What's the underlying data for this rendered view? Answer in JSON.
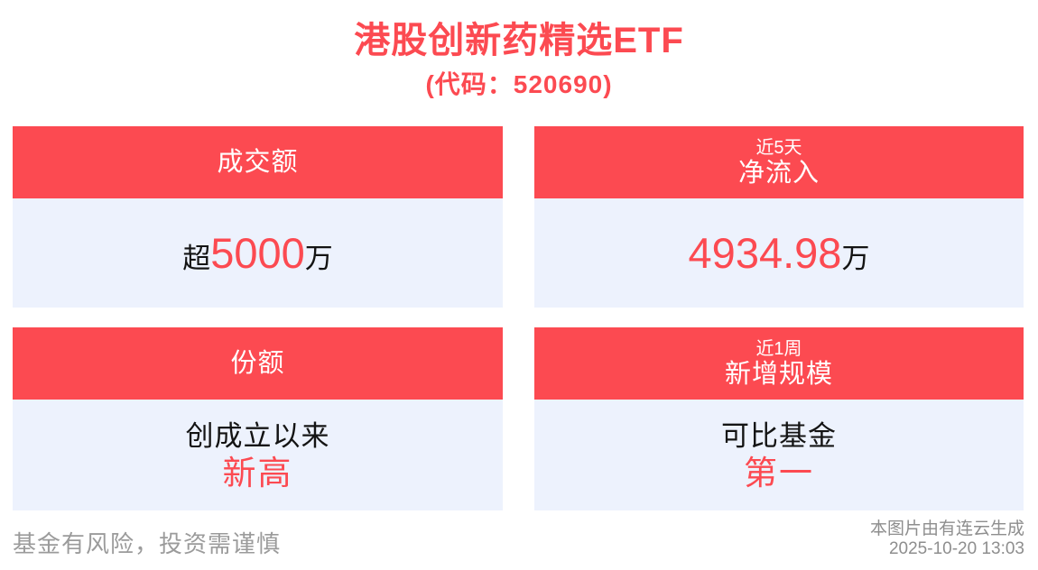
{
  "page": {
    "title": "港股创新药精选ETF",
    "subtitle": "(代码：520690)"
  },
  "colors": {
    "accent_red": "#FC4A51",
    "card_body_bg": "#EDF2FD",
    "text_dark": "#141414",
    "footer_gray": "#9B9B9B",
    "header_text": "#FFFFFF"
  },
  "cards": [
    {
      "name": "turnover",
      "header_small": "",
      "header_main": "成交额",
      "value_prefix": "超",
      "value_highlight": "5000",
      "value_suffix": "万"
    },
    {
      "name": "net-inflow-5d",
      "header_small": "近5天",
      "header_main": "净流入",
      "value_prefix": "",
      "value_highlight": "4934.98",
      "value_suffix": "万"
    },
    {
      "name": "fund-shares",
      "header_small": "",
      "header_main": "份额",
      "line1": "创成立以来",
      "line2": "新高"
    },
    {
      "name": "new-scale-1w",
      "header_small": "近1周",
      "header_main": "新增规模",
      "line1": "可比基金",
      "line2": "第一"
    }
  ],
  "footer": {
    "disclaimer": "基金有风险，投资需谨慎",
    "credit": "本图片由有连云生成",
    "timestamp": "2025-10-20 13:03"
  }
}
